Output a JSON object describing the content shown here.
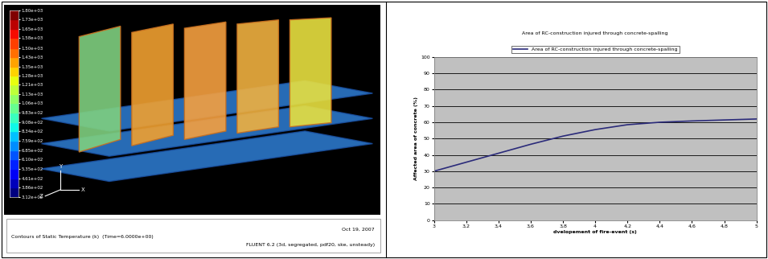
{
  "chart_data": [
    {
      "type": "contour",
      "caption": "Contours of Static Temperature (k)  (Time=6.0000e+00)",
      "date": "Oct 19, 2007",
      "software": "FLUENT 6.2 (3d, segregated, pdf20, ske, unsteady)",
      "axes_labels": [
        "Y",
        "Z",
        "X"
      ],
      "colorbar": {
        "range": [
          312,
          1800
        ],
        "ticks": [
          {
            "value": 312,
            "label": "3.12e+02"
          },
          {
            "value": 386,
            "label": "3.86e+02"
          },
          {
            "value": 461,
            "label": "4.61e+02"
          },
          {
            "value": 535,
            "label": "5.35e+02"
          },
          {
            "value": 610,
            "label": "6.10e+02"
          },
          {
            "value": 685,
            "label": "6.85e+02"
          },
          {
            "value": 759,
            "label": "7.59e+02"
          },
          {
            "value": 834,
            "label": "8.34e+02"
          },
          {
            "value": 908,
            "label": "9.08e+02"
          },
          {
            "value": 983,
            "label": "9.83e+02"
          },
          {
            "value": 1060,
            "label": "1.06e+03"
          },
          {
            "value": 1130,
            "label": "1.13e+03"
          },
          {
            "value": 1210,
            "label": "1.21e+03"
          },
          {
            "value": 1280,
            "label": "1.28e+03"
          },
          {
            "value": 1350,
            "label": "1.35e+03"
          },
          {
            "value": 1430,
            "label": "1.43e+03"
          },
          {
            "value": 1500,
            "label": "1.50e+03"
          },
          {
            "value": 1580,
            "label": "1.58e+03"
          },
          {
            "value": 1650,
            "label": "1.65e+03"
          },
          {
            "value": 1730,
            "label": "1.73e+03"
          },
          {
            "value": 1800,
            "label": "1.80e+03"
          }
        ]
      }
    },
    {
      "type": "line",
      "title": "Area of RC-construction injured through concrete-spalling",
      "x_label": "dvelopement of fire-event (s)",
      "y_label": "Affected area of concrete (%)",
      "x": [
        3,
        3.2,
        3.4,
        3.6,
        3.8,
        4,
        4.2,
        4.4,
        4.6,
        4.8,
        5
      ],
      "series": [
        {
          "name": "Area of RC-construction injured through concrete-spalling",
          "color": "#2b2b7a",
          "values": [
            30,
            35.5,
            41,
            46.5,
            51.5,
            55.5,
            58.5,
            60,
            60.8,
            61.4,
            62
          ]
        }
      ],
      "xlim": [
        3,
        5
      ],
      "xticks": [
        3,
        {
          "value": 3.2,
          "label": "3,2"
        },
        {
          "value": 3.4,
          "label": "3,4"
        },
        {
          "value": 3.6,
          "label": "3,6"
        },
        {
          "value": 3.8,
          "label": "3,8"
        },
        4,
        {
          "value": 4.2,
          "label": "4,2"
        },
        {
          "value": 4.4,
          "label": "4,4"
        },
        {
          "value": 4.6,
          "label": "4,6"
        },
        {
          "value": 4.8,
          "label": "4,8"
        },
        5
      ],
      "ylim": [
        0,
        100
      ],
      "yticks": [
        0,
        10,
        20,
        30,
        40,
        50,
        60,
        70,
        80,
        90,
        100
      ],
      "grid": "y",
      "legend": "top"
    }
  ]
}
